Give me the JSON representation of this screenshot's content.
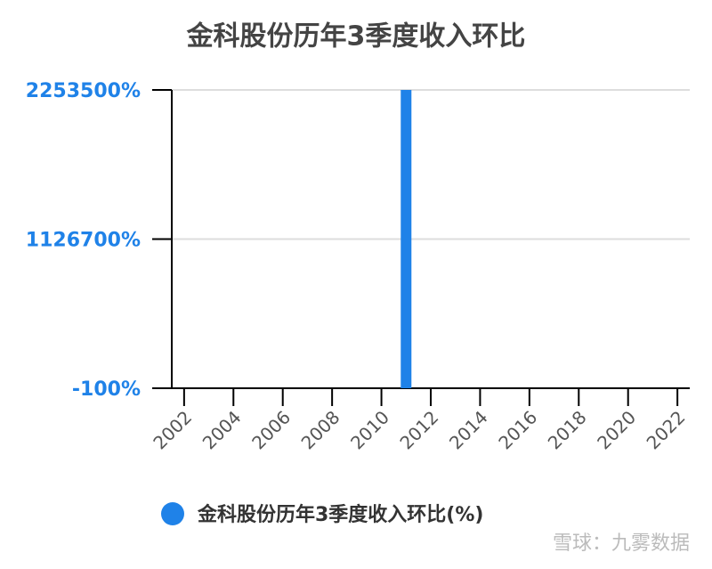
{
  "chart_data": {
    "type": "bar",
    "title": "金科股份历年3季度收入环比",
    "x": [
      2002,
      2003,
      2004,
      2005,
      2006,
      2007,
      2008,
      2009,
      2010,
      2011,
      2012,
      2013,
      2014,
      2015,
      2016,
      2017,
      2018,
      2019,
      2020,
      2021,
      2022
    ],
    "series": [
      {
        "name": "金科股份历年3季度收入环比(%)",
        "color": "#1f82e8",
        "values": [
          0,
          0,
          0,
          0,
          0,
          0,
          0,
          0,
          0,
          2253500,
          0,
          0,
          0,
          0,
          0,
          0,
          0,
          0,
          0,
          0,
          0
        ]
      }
    ],
    "xlim": [
      2001.5,
      2022.5
    ],
    "xticks": [
      2002,
      2004,
      2006,
      2008,
      2010,
      2012,
      2014,
      2016,
      2018,
      2020,
      2022
    ],
    "ylim": [
      -100,
      2253500
    ],
    "yticks": [
      {
        "value": -100,
        "label": "-100%"
      },
      {
        "value": 1126700,
        "label": "1126700%"
      },
      {
        "value": 2253500,
        "label": "2253500%"
      }
    ],
    "grid": true,
    "legend": "bottom",
    "watermark": "雪球：九雾数据"
  }
}
